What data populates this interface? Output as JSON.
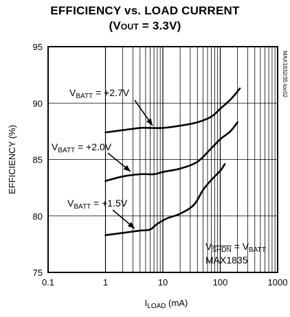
{
  "title_line1": "EFFICIENCY vs. LOAD CURRENT",
  "title_line2": {
    "open": "(V",
    "sub": "OUT",
    "rest": " = 3.3V)"
  },
  "side_id": "MAX1832/35 toc02",
  "chart_data": {
    "type": "line",
    "title": "EFFICIENCY vs. LOAD CURRENT (VOUT = 3.3V)",
    "xlabel": {
      "main": "I",
      "sub": "LOAD",
      "unit": " (mA)"
    },
    "ylabel": "EFFICIENCY (%)",
    "xscale": "log",
    "xlim": [
      0.1,
      1000
    ],
    "ylim": [
      75,
      95
    ],
    "xticks": [
      "0.1",
      "1",
      "10",
      "100",
      "1000"
    ],
    "yticks": [
      "75",
      "80",
      "85",
      "90",
      "95"
    ],
    "grid": true,
    "grid_region_x": [
      1,
      1000
    ],
    "series": [
      {
        "name": "VBATT = +2.7V",
        "label": {
          "main": "V",
          "sub": "BATT",
          "rest": " = +2.7V"
        },
        "points": [
          [
            1,
            87.4
          ],
          [
            2,
            87.6
          ],
          [
            4,
            87.8
          ],
          [
            6,
            87.8
          ],
          [
            10,
            87.8
          ],
          [
            20,
            88.0
          ],
          [
            40,
            88.3
          ],
          [
            70,
            88.8
          ],
          [
            100,
            89.5
          ],
          [
            150,
            90.3
          ],
          [
            220,
            91.3
          ]
        ]
      },
      {
        "name": "VBATT = +2.0V",
        "label": {
          "main": "V",
          "sub": "BATT",
          "rest": " = +2.0V"
        },
        "points": [
          [
            1,
            83.1
          ],
          [
            2,
            83.5
          ],
          [
            4,
            83.7
          ],
          [
            7,
            83.7
          ],
          [
            10,
            83.9
          ],
          [
            20,
            84.2
          ],
          [
            40,
            84.8
          ],
          [
            70,
            86.0
          ],
          [
            100,
            86.8
          ],
          [
            150,
            87.5
          ],
          [
            200,
            88.3
          ]
        ]
      },
      {
        "name": "VBATT = +1.5V",
        "label": {
          "main": "V",
          "sub": "BATT",
          "rest": " = +1.5V"
        },
        "points": [
          [
            1,
            78.3
          ],
          [
            2,
            78.5
          ],
          [
            4,
            78.7
          ],
          [
            6,
            78.8
          ],
          [
            8,
            79.3
          ],
          [
            12,
            79.8
          ],
          [
            20,
            80.2
          ],
          [
            35,
            81.0
          ],
          [
            50,
            82.3
          ],
          [
            70,
            83.2
          ],
          [
            100,
            84.0
          ],
          [
            120,
            84.6
          ]
        ]
      }
    ],
    "condition": {
      "lhs_main": "V",
      "lhs_sub": "SHDN",
      "eq": " = ",
      "rhs_main": "V",
      "rhs_sub": "BATT"
    },
    "part": "MAX1835"
  }
}
